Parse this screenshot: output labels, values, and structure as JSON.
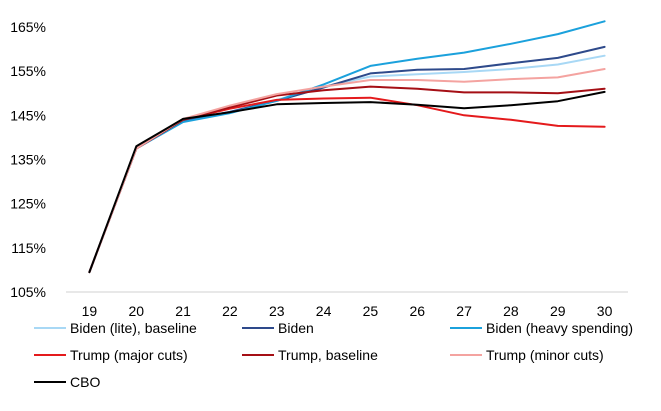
{
  "chart_data": {
    "type": "line",
    "title": "",
    "xlabel": "",
    "ylabel": "",
    "x": [
      "19",
      "20",
      "21",
      "22",
      "23",
      "24",
      "25",
      "26",
      "27",
      "28",
      "29",
      "30"
    ],
    "y_ticks": [
      "165%",
      "155%",
      "145%",
      "135%",
      "125%",
      "115%",
      "105%"
    ],
    "ylim": [
      105,
      165
    ],
    "grid": false,
    "legend_position": "bottom",
    "series": [
      {
        "name": "Biden (lite), baseline",
        "color": "#a8d8f5",
        "values": [
          109.5,
          137.5,
          143.8,
          145.8,
          148.5,
          151.5,
          153.8,
          154.3,
          154.8,
          155.5,
          156.5,
          158.5
        ]
      },
      {
        "name": "Biden",
        "color": "#2e4a8b",
        "values": [
          109.5,
          137.5,
          143.8,
          145.8,
          148.3,
          151.3,
          154.5,
          155.3,
          155.5,
          156.8,
          158.0,
          160.5
        ]
      },
      {
        "name": "Biden (heavy spending)",
        "color": "#1ba1dc",
        "values": [
          109.5,
          137.5,
          143.5,
          145.5,
          148.3,
          152.0,
          156.2,
          157.8,
          159.2,
          161.2,
          163.4,
          166.3
        ]
      },
      {
        "name": "Trump (major cuts)",
        "color": "#e41a1c",
        "values": [
          109.5,
          137.5,
          144.0,
          146.5,
          148.5,
          148.8,
          149.0,
          147.3,
          145.0,
          144.0,
          142.6,
          142.4
        ]
      },
      {
        "name": "Trump, baseline",
        "color": "#a50f15",
        "values": [
          109.5,
          137.5,
          144.0,
          146.8,
          149.5,
          150.7,
          151.5,
          151.0,
          150.2,
          150.2,
          150.0,
          151.0
        ]
      },
      {
        "name": "Trump (minor cuts)",
        "color": "#f4a3a0",
        "values": [
          109.5,
          137.5,
          144.2,
          147.2,
          149.8,
          151.5,
          153.0,
          153.0,
          152.6,
          153.2,
          153.6,
          155.5
        ]
      },
      {
        "name": "CBO",
        "color": "#000000",
        "values": [
          109.5,
          138.0,
          144.2,
          145.7,
          147.5,
          147.8,
          148.0,
          147.4,
          146.6,
          147.3,
          148.2,
          150.3
        ]
      }
    ]
  }
}
